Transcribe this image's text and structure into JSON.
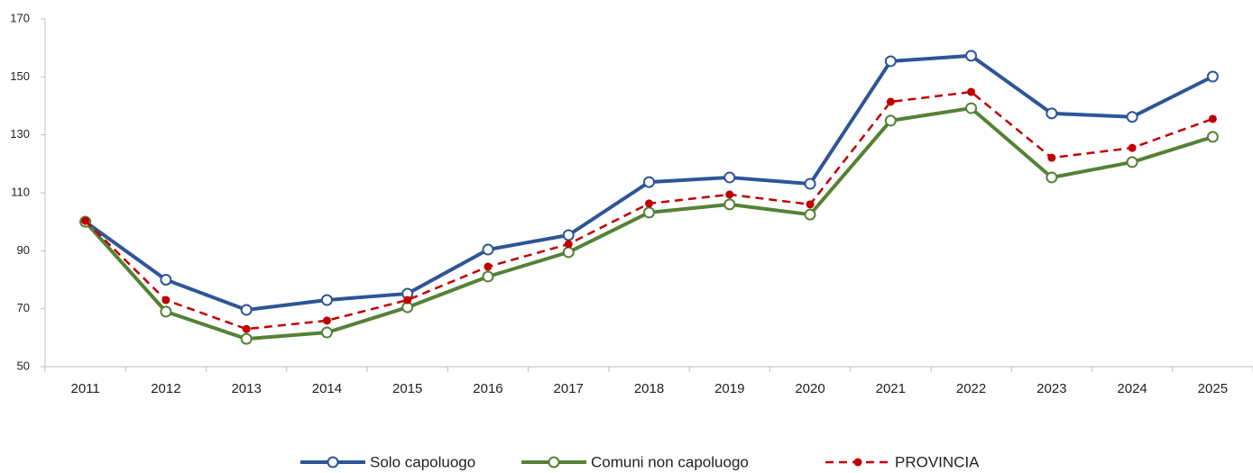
{
  "chart_data": {
    "type": "line",
    "categories": [
      "2011",
      "2012",
      "2013",
      "2014",
      "2015",
      "2016",
      "2017",
      "2018",
      "2019",
      "2020",
      "2021",
      "2022",
      "2023",
      "2024",
      "2025"
    ],
    "series": [
      {
        "name": "Solo capoluogo",
        "color": "#2e5597",
        "marker": "open",
        "dashed": false,
        "values": [
          100,
          80,
          69.6,
          73,
          75.2,
          90.4,
          95.4,
          113.7,
          115.3,
          113.1,
          155.4,
          157.3,
          137.4,
          136.2,
          150.1
        ]
      },
      {
        "name": "Comuni non capoluogo",
        "color": "#548235",
        "marker": "open",
        "dashed": false,
        "values": [
          100,
          69,
          59.6,
          61.8,
          70.5,
          81.1,
          89.5,
          103.2,
          106,
          102.5,
          134.9,
          139.2,
          115.3,
          120.6,
          129.3
        ]
      },
      {
        "name": "PROVINCIA",
        "color": "#c00000",
        "marker": "filled",
        "dashed": true,
        "values": [
          100.3,
          73,
          63,
          65.9,
          73,
          84.5,
          92.3,
          106.3,
          109.4,
          106,
          141.4,
          144.8,
          122.1,
          125.5,
          135.5
        ]
      }
    ],
    "ylim": [
      50,
      170
    ],
    "yticks": [
      50,
      70,
      90,
      110,
      130,
      150,
      170
    ],
    "grid": false,
    "legend": "bottom"
  }
}
